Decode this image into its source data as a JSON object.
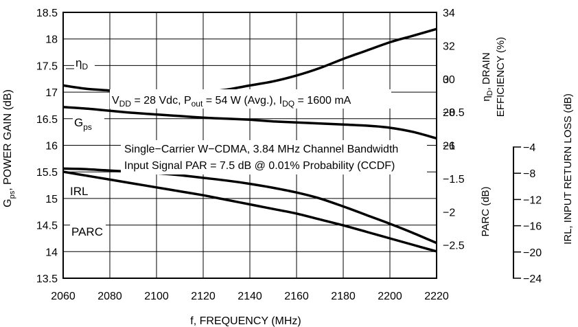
{
  "chart_data": {
    "type": "line",
    "x": [
      2060,
      2070,
      2080,
      2090,
      2100,
      2110,
      2120,
      2130,
      2140,
      2150,
      2160,
      2170,
      2180,
      2190,
      2200,
      2210,
      2220
    ],
    "xlim": [
      2060,
      2220
    ],
    "xticks": [
      2060,
      2080,
      2100,
      2120,
      2140,
      2160,
      2180,
      2200,
      2220
    ],
    "xlabel": "f, FREQUENCY (MHz)",
    "grid": true,
    "left_axis": {
      "label": "Gps, POWER GAIN (dB)",
      "label_main": "G",
      "label_sub": "ps",
      "label_rest": ", POWER GAIN (dB)",
      "ylim": [
        13.5,
        18.5
      ],
      "ticks": [
        "13.5",
        "14",
        "14.5",
        "15",
        "15.5",
        "16",
        "16.5",
        "17",
        "17.5",
        "18",
        "18.5"
      ]
    },
    "right_axis_efficiency": {
      "label_line1_main": "η",
      "label_line1_sub": "D",
      "label_line1_rest": ", DRAIN",
      "label_line2": "EFFICIENCY (%)",
      "ylim": [
        18,
        34
      ],
      "ticks": [
        "26",
        "28",
        "30",
        "32",
        "34"
      ]
    },
    "right_axis_parc": {
      "label": "PARC (dB)",
      "ylim": [
        -3,
        1
      ],
      "ticks": [
        "0",
        "−0.5",
        "−1",
        "−1.5",
        "−2",
        "−2.5"
      ]
    },
    "right_axis_irl": {
      "label": "IRL, INPUT RETURN LOSS (dB)",
      "ylim": [
        -24,
        -4
      ],
      "ticks": [
        "−4",
        "−8",
        "−12",
        "−16",
        "−20",
        "−24"
      ]
    },
    "series": [
      {
        "name": "ηD",
        "label_main": "η",
        "label_sub": "D",
        "axis": "efficiency",
        "values": [
          29.6,
          29.4,
          29.3,
          29.2,
          29.1,
          29.1,
          29.2,
          29.35,
          29.6,
          29.85,
          30.2,
          30.65,
          31.2,
          31.7,
          32.2,
          32.6,
          33.0
        ]
      },
      {
        "name": "Gps",
        "label_main": "G",
        "label_sub": "ps",
        "axis": "gain",
        "values": [
          16.72,
          16.69,
          16.65,
          16.61,
          16.58,
          16.55,
          16.52,
          16.5,
          16.48,
          16.45,
          16.43,
          16.41,
          16.39,
          16.37,
          16.33,
          16.25,
          16.13
        ]
      },
      {
        "name": "IRL",
        "axis": "irl",
        "values": [
          -8.6,
          -9.2,
          -9.8,
          -10.4,
          -11.0,
          -11.6,
          -12.2,
          -12.9,
          -13.6,
          -14.3,
          -15.0,
          -15.9,
          -16.8,
          -17.8,
          -18.8,
          -19.8,
          -20.8
        ]
      },
      {
        "name": "PARC",
        "axis": "parc",
        "values": [
          -1.35,
          -1.36,
          -1.38,
          -1.4,
          -1.42,
          -1.45,
          -1.49,
          -1.53,
          -1.58,
          -1.64,
          -1.71,
          -1.8,
          -1.92,
          -2.05,
          -2.18,
          -2.32,
          -2.47
        ]
      }
    ],
    "annotations": {
      "conditions_line1": {
        "parts": [
          {
            "t": "V",
            "sub": false
          },
          {
            "t": "DD",
            "sub": true
          },
          {
            "t": " = 28 Vdc, P",
            "sub": false
          },
          {
            "t": "out",
            "sub": true
          },
          {
            "t": " = 54 W (Avg.), I",
            "sub": false
          },
          {
            "t": "DQ",
            "sub": true
          },
          {
            "t": " = 1600 mA",
            "sub": false
          }
        ]
      },
      "conditions_line2": "Single−Carrier W−CDMA, 3.84 MHz Channel Bandwidth",
      "conditions_line3": "Input Signal PAR = 7.5 dB @ 0.01% Probability (CCDF)"
    }
  }
}
